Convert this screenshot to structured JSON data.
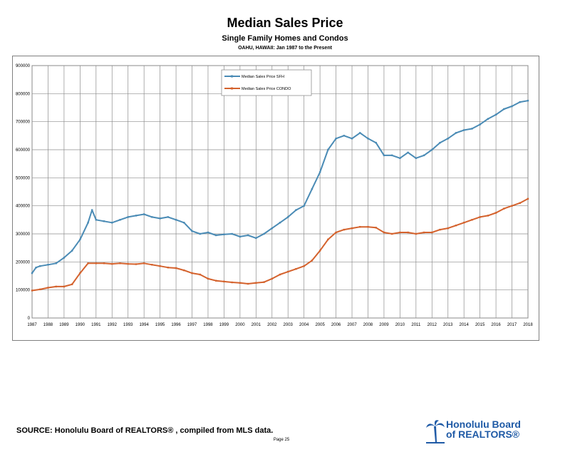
{
  "chart_data": {
    "type": "line",
    "title": "Median Sales Price",
    "subtitle": "Single Family Homes and Condos",
    "subtitle2": "OAHU, HAWAII: Jan 1987 to the Present",
    "xlabel": "",
    "ylabel": "",
    "ylim": [
      0,
      900000
    ],
    "xlim": [
      1987,
      2018
    ],
    "y_ticks": [
      "0",
      "100000",
      "200000",
      "300000",
      "400000",
      "500000",
      "600000",
      "700000",
      "800000",
      "900000"
    ],
    "x_ticks": [
      "1987",
      "1988",
      "1989",
      "1990",
      "1991",
      "1992",
      "1993",
      "1994",
      "1995",
      "1996",
      "1997",
      "1998",
      "1999",
      "2000",
      "2001",
      "2002",
      "2003",
      "2004",
      "2005",
      "2006",
      "2007",
      "2008",
      "2009",
      "2010",
      "2011",
      "2012",
      "2013",
      "2014",
      "2015",
      "2016",
      "2017",
      "2018"
    ],
    "grid": true,
    "legend_position": "top-center",
    "series": [
      {
        "name": "Median Sales Price SFH",
        "color": "#4a8bb5",
        "points": [
          [
            1987.0,
            160000
          ],
          [
            1987.25,
            180000
          ],
          [
            1987.5,
            185000
          ],
          [
            1988.0,
            190000
          ],
          [
            1988.5,
            195000
          ],
          [
            1989.0,
            215000
          ],
          [
            1989.5,
            240000
          ],
          [
            1990.0,
            280000
          ],
          [
            1990.5,
            340000
          ],
          [
            1990.75,
            385000
          ],
          [
            1991.0,
            350000
          ],
          [
            1991.5,
            345000
          ],
          [
            1992.0,
            340000
          ],
          [
            1992.5,
            350000
          ],
          [
            1993.0,
            360000
          ],
          [
            1993.5,
            365000
          ],
          [
            1994.0,
            370000
          ],
          [
            1994.5,
            360000
          ],
          [
            1995.0,
            355000
          ],
          [
            1995.5,
            360000
          ],
          [
            1996.0,
            350000
          ],
          [
            1996.5,
            340000
          ],
          [
            1997.0,
            310000
          ],
          [
            1997.5,
            300000
          ],
          [
            1998.0,
            305000
          ],
          [
            1998.5,
            295000
          ],
          [
            1999.0,
            298000
          ],
          [
            1999.5,
            300000
          ],
          [
            2000.0,
            290000
          ],
          [
            2000.5,
            295000
          ],
          [
            2001.0,
            285000
          ],
          [
            2001.5,
            300000
          ],
          [
            2002.0,
            320000
          ],
          [
            2002.5,
            340000
          ],
          [
            2003.0,
            360000
          ],
          [
            2003.5,
            385000
          ],
          [
            2004.0,
            400000
          ],
          [
            2004.5,
            460000
          ],
          [
            2005.0,
            520000
          ],
          [
            2005.5,
            600000
          ],
          [
            2006.0,
            640000
          ],
          [
            2006.5,
            650000
          ],
          [
            2007.0,
            640000
          ],
          [
            2007.5,
            660000
          ],
          [
            2008.0,
            640000
          ],
          [
            2008.5,
            625000
          ],
          [
            2009.0,
            580000
          ],
          [
            2009.5,
            580000
          ],
          [
            2010.0,
            570000
          ],
          [
            2010.5,
            590000
          ],
          [
            2011.0,
            570000
          ],
          [
            2011.5,
            580000
          ],
          [
            2012.0,
            600000
          ],
          [
            2012.5,
            625000
          ],
          [
            2013.0,
            640000
          ],
          [
            2013.5,
            660000
          ],
          [
            2014.0,
            670000
          ],
          [
            2014.5,
            675000
          ],
          [
            2015.0,
            690000
          ],
          [
            2015.5,
            710000
          ],
          [
            2016.0,
            725000
          ],
          [
            2016.5,
            745000
          ],
          [
            2017.0,
            755000
          ],
          [
            2017.5,
            770000
          ],
          [
            2018.0,
            775000
          ]
        ]
      },
      {
        "name": "Median Sales Price CONDO",
        "color": "#d4622d",
        "points": [
          [
            1987.0,
            98000
          ],
          [
            1987.5,
            102000
          ],
          [
            1988.0,
            108000
          ],
          [
            1988.5,
            112000
          ],
          [
            1989.0,
            112000
          ],
          [
            1989.5,
            120000
          ],
          [
            1990.0,
            160000
          ],
          [
            1990.5,
            195000
          ],
          [
            1991.0,
            195000
          ],
          [
            1991.5,
            195000
          ],
          [
            1992.0,
            193000
          ],
          [
            1992.5,
            195000
          ],
          [
            1993.0,
            193000
          ],
          [
            1993.5,
            192000
          ],
          [
            1994.0,
            195000
          ],
          [
            1994.5,
            190000
          ],
          [
            1995.0,
            185000
          ],
          [
            1995.5,
            180000
          ],
          [
            1996.0,
            178000
          ],
          [
            1996.5,
            170000
          ],
          [
            1997.0,
            160000
          ],
          [
            1997.5,
            155000
          ],
          [
            1998.0,
            140000
          ],
          [
            1998.5,
            133000
          ],
          [
            1999.0,
            130000
          ],
          [
            1999.5,
            127000
          ],
          [
            2000.0,
            125000
          ],
          [
            2000.5,
            122000
          ],
          [
            2001.0,
            125000
          ],
          [
            2001.5,
            128000
          ],
          [
            2002.0,
            140000
          ],
          [
            2002.5,
            155000
          ],
          [
            2003.0,
            165000
          ],
          [
            2003.5,
            175000
          ],
          [
            2004.0,
            185000
          ],
          [
            2004.5,
            205000
          ],
          [
            2005.0,
            240000
          ],
          [
            2005.5,
            280000
          ],
          [
            2006.0,
            305000
          ],
          [
            2006.5,
            315000
          ],
          [
            2007.0,
            320000
          ],
          [
            2007.5,
            325000
          ],
          [
            2008.0,
            325000
          ],
          [
            2008.5,
            322000
          ],
          [
            2009.0,
            305000
          ],
          [
            2009.5,
            300000
          ],
          [
            2010.0,
            305000
          ],
          [
            2010.5,
            305000
          ],
          [
            2011.0,
            300000
          ],
          [
            2011.5,
            305000
          ],
          [
            2012.0,
            305000
          ],
          [
            2012.5,
            315000
          ],
          [
            2013.0,
            320000
          ],
          [
            2013.5,
            330000
          ],
          [
            2014.0,
            340000
          ],
          [
            2014.5,
            350000
          ],
          [
            2015.0,
            360000
          ],
          [
            2015.5,
            365000
          ],
          [
            2016.0,
            375000
          ],
          [
            2016.5,
            390000
          ],
          [
            2017.0,
            400000
          ],
          [
            2017.5,
            410000
          ],
          [
            2018.0,
            425000
          ]
        ]
      }
    ]
  },
  "footer": {
    "source": "SOURCE:  Honolulu Board of REALTORS® , compiled from MLS data.",
    "page": "Page 25",
    "logo_line1": "Honolulu Board",
    "logo_line2": "of REALTORS®"
  }
}
